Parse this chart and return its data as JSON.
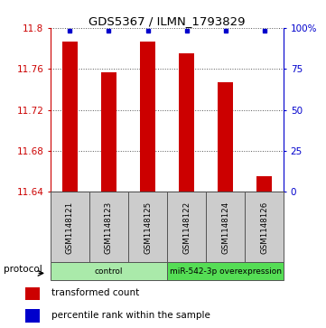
{
  "title": "GDS5367 / ILMN_1793829",
  "samples": [
    "GSM1148121",
    "GSM1148123",
    "GSM1148125",
    "GSM1148122",
    "GSM1148124",
    "GSM1148126"
  ],
  "bar_values": [
    11.787,
    11.757,
    11.787,
    11.775,
    11.747,
    11.655
  ],
  "y_min": 11.64,
  "y_max": 11.8,
  "y_ticks": [
    11.64,
    11.68,
    11.72,
    11.76,
    11.8
  ],
  "right_y_tick_labels": [
    "0",
    "25",
    "50",
    "75",
    "100%"
  ],
  "right_y_ticks_pct": [
    0,
    25,
    50,
    75,
    100
  ],
  "bar_color": "#cc0000",
  "percentile_color": "#0000cc",
  "protocol_groups": [
    {
      "label": "control",
      "indices": [
        0,
        1,
        2
      ],
      "color": "#aaeaaa"
    },
    {
      "label": "miR-542-3p overexpression",
      "indices": [
        3,
        4,
        5
      ],
      "color": "#55dd55"
    }
  ],
  "legend_items": [
    {
      "color": "#cc0000",
      "label": "transformed count"
    },
    {
      "color": "#0000cc",
      "label": "percentile rank within the sample"
    }
  ],
  "left_axis_color": "#cc0000",
  "right_axis_color": "#0000cc",
  "background_color": "#ffffff",
  "bar_width": 0.4,
  "grid_color": "#555555"
}
